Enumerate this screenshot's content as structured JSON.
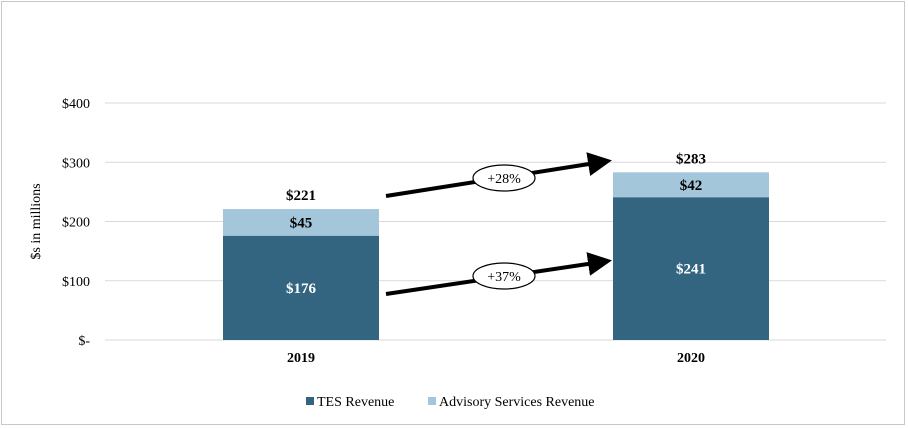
{
  "chart_data": {
    "type": "bar",
    "stacked": true,
    "categories": [
      "2019",
      "2020"
    ],
    "series": [
      {
        "name": "TES Revenue",
        "values": [
          176,
          241
        ],
        "color": "#336580",
        "value_labels": [
          "$176",
          "$241"
        ]
      },
      {
        "name": "Advisory Services Revenue",
        "values": [
          45,
          42
        ],
        "color": "#a3c6da",
        "value_labels": [
          "$45",
          "$42"
        ]
      }
    ],
    "totals": [
      221,
      283
    ],
    "total_labels": [
      "$221",
      "$283"
    ],
    "ylabel": "$s in millions",
    "ylim": [
      0,
      400
    ],
    "yticks": [
      0,
      100,
      200,
      300,
      400
    ],
    "ytick_labels": [
      "$-",
      "$100",
      "$200",
      "$300",
      "$400"
    ],
    "grid": true,
    "legend_position": "bottom",
    "annotations": [
      {
        "text": "+28%",
        "from": "2019 total",
        "to": "2020 total"
      },
      {
        "text": "+37%",
        "from": "2019 TES Revenue",
        "to": "2020 TES Revenue"
      }
    ],
    "grid_color": "#d9d9d9"
  }
}
